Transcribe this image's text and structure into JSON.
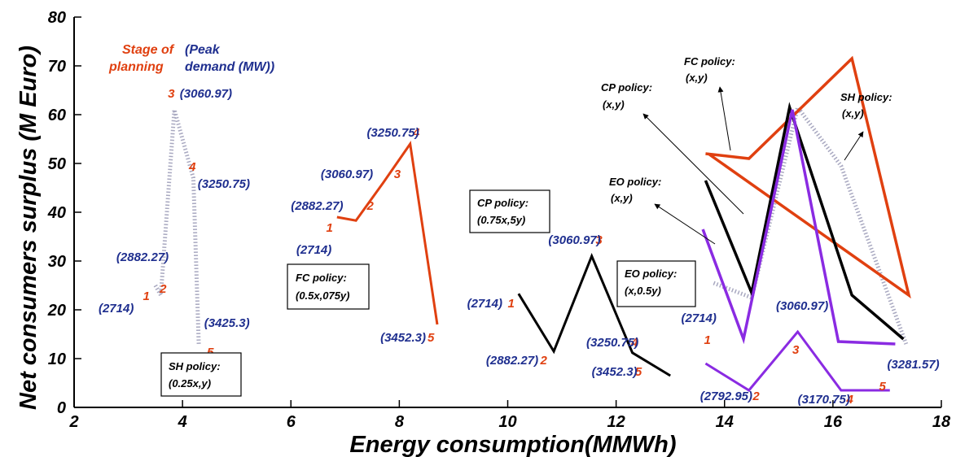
{
  "chart_data": {
    "type": "line",
    "xlabel": "Energy consumption(MMWh)",
    "ylabel": "Net consumers surplus (M Euro)",
    "xlim": [
      2,
      18
    ],
    "ylim": [
      0,
      80
    ],
    "xticks": [
      2,
      4,
      6,
      8,
      10,
      12,
      14,
      16,
      18
    ],
    "yticks": [
      0,
      10,
      20,
      30,
      40,
      50,
      60,
      70,
      80
    ],
    "grid": false,
    "legend_header": {
      "stage": "Stage of planning",
      "peak": "(Peak demand (MW))"
    },
    "series": [
      {
        "policy": "SH policy: (0.25x,y)",
        "color": "#a8a8c0",
        "style": "dotted",
        "points": [
          [
            3.5,
            25
          ],
          [
            3.6,
            23
          ],
          [
            3.85,
            61
          ],
          [
            4.2,
            47
          ],
          [
            4.3,
            13
          ]
        ]
      },
      {
        "policy": "FC policy: (0.5x,075y)",
        "color": "#e04010",
        "style": "solid",
        "points": [
          [
            6.85,
            39
          ],
          [
            7.2,
            38.3
          ],
          [
            7.7,
            46
          ],
          [
            8.2,
            54
          ],
          [
            8.7,
            17
          ]
        ]
      },
      {
        "policy": "CP policy: (0.75x,5y)",
        "color": "#000000",
        "style": "solid",
        "points": [
          [
            10.2,
            23.3
          ],
          [
            10.85,
            11.5
          ],
          [
            11.55,
            31
          ],
          [
            12.3,
            11.2
          ],
          [
            13.0,
            6.5
          ]
        ]
      },
      {
        "policy": "EO policy: (x,0.5y)",
        "color": "#8a2be2",
        "style": "solid",
        "points": [
          [
            13.65,
            9
          ],
          [
            14.45,
            3.5
          ],
          [
            15.35,
            15.5
          ],
          [
            16.15,
            3.5
          ],
          [
            17.05,
            3.5
          ]
        ]
      },
      {
        "policy": "SH policy: (x,y)",
        "color": "#a8a8c0",
        "style": "dotted",
        "points": [
          [
            13.8,
            25.5
          ],
          [
            14.5,
            22.5
          ],
          [
            15.35,
            61.5
          ],
          [
            16.15,
            49.5
          ],
          [
            17.35,
            13
          ]
        ]
      },
      {
        "policy": "FC policy: (x,y)",
        "color": "#e04010",
        "style": "solid",
        "points": [
          [
            13.65,
            52
          ],
          [
            14.45,
            51
          ],
          [
            16.35,
            71.5
          ],
          [
            17.4,
            23
          ],
          [
            13.7,
            52
          ]
        ]
      },
      {
        "policy": "CP policy: (x,y)",
        "color": "#000000",
        "style": "solid",
        "points": [
          [
            13.65,
            46.5
          ],
          [
            14.5,
            23.5
          ],
          [
            15.2,
            61.5
          ],
          [
            16.35,
            23
          ],
          [
            17.3,
            14
          ]
        ]
      },
      {
        "policy": "EO policy: (x,y)",
        "color": "#8a2be2",
        "style": "solid",
        "points": [
          [
            13.6,
            36.5
          ],
          [
            14.35,
            14
          ],
          [
            15.25,
            61
          ],
          [
            16.1,
            13.5
          ],
          [
            17.15,
            13
          ]
        ]
      }
    ],
    "stage_labels": [
      {
        "text": "3",
        "x": 3.73,
        "y": 63.5
      },
      {
        "text": "4",
        "x": 4.12,
        "y": 48.5
      },
      {
        "text": "2",
        "x": 3.58,
        "y": 23.5
      },
      {
        "text": "1",
        "x": 3.27,
        "y": 22
      },
      {
        "text": "5",
        "x": 4.45,
        "y": 10.5
      },
      {
        "text": "4",
        "x": 8.25,
        "y": 55.5
      },
      {
        "text": "3",
        "x": 7.9,
        "y": 47
      },
      {
        "text": "2",
        "x": 7.4,
        "y": 40.5
      },
      {
        "text": "1",
        "x": 6.65,
        "y": 36
      },
      {
        "text": "5",
        "x": 8.52,
        "y": 13.5
      },
      {
        "text": "1",
        "x": 10.0,
        "y": 20.5
      },
      {
        "text": "3",
        "x": 11.62,
        "y": 33.5
      },
      {
        "text": "2",
        "x": 10.6,
        "y": 8.8
      },
      {
        "text": "4",
        "x": 12.28,
        "y": 12.5
      },
      {
        "text": "5",
        "x": 12.35,
        "y": 6.5
      },
      {
        "text": "1",
        "x": 13.62,
        "y": 13
      },
      {
        "text": "3",
        "x": 15.25,
        "y": 11
      },
      {
        "text": "2",
        "x": 14.52,
        "y": 1.5
      },
      {
        "text": "4",
        "x": 16.25,
        "y": 0.8
      },
      {
        "text": "5",
        "x": 16.85,
        "y": 3.5
      }
    ],
    "peak_labels": [
      {
        "text": "(3060.97)",
        "x": 3.95,
        "y": 63.5
      },
      {
        "text": "(3250.75)",
        "x": 4.28,
        "y": 45
      },
      {
        "text": "(2882.27)",
        "x": 2.78,
        "y": 30
      },
      {
        "text": "(2714)",
        "x": 2.45,
        "y": 19.5
      },
      {
        "text": "(3425.3)",
        "x": 4.4,
        "y": 16.5
      },
      {
        "text": "(3250.75)",
        "x": 7.4,
        "y": 55.5
      },
      {
        "text": "(3060.97)",
        "x": 6.55,
        "y": 47
      },
      {
        "text": "(2882.27)",
        "x": 6.0,
        "y": 40.5
      },
      {
        "text": "(2714)",
        "x": 6.1,
        "y": 31.5
      },
      {
        "text": "(3452.3)",
        "x": 7.65,
        "y": 13.5
      },
      {
        "text": "(2714)",
        "x": 9.25,
        "y": 20.5
      },
      {
        "text": "(3060.97)",
        "x": 10.75,
        "y": 33.5
      },
      {
        "text": "(2882.27)",
        "x": 9.6,
        "y": 8.8
      },
      {
        "text": "(3250.75)",
        "x": 11.45,
        "y": 12.5
      },
      {
        "text": "(3452.3)",
        "x": 11.55,
        "y": 6.5
      },
      {
        "text": "(2714)",
        "x": 13.2,
        "y": 17.5
      },
      {
        "text": "(3060.97)",
        "x": 14.95,
        "y": 20
      },
      {
        "text": "(2792.95)",
        "x": 13.55,
        "y": 1.5
      },
      {
        "text": "(3170.75)",
        "x": 15.35,
        "y": 0.8
      },
      {
        "text": "(3281.57)",
        "x": 17.0,
        "y": 8
      }
    ],
    "annotations": [
      {
        "lines": [
          "SH policy:",
          "(0.25x,y)"
        ],
        "boxed": true
      },
      {
        "lines": [
          "FC policy:",
          "(0.5x,075y)"
        ],
        "boxed": true
      },
      {
        "lines": [
          "CP policy:",
          "(0.75x,5y)"
        ],
        "boxed": true
      },
      {
        "lines": [
          "EO policy:",
          "(x,0.5y)"
        ],
        "boxed": true
      },
      {
        "lines": [
          "FC policy:",
          "(x,y)"
        ],
        "boxed": false
      },
      {
        "lines": [
          "CP policy:",
          "(x,y)"
        ],
        "boxed": false
      },
      {
        "lines": [
          "EO policy:",
          "(x,y)"
        ],
        "boxed": false
      },
      {
        "lines": [
          "SH policy:",
          "(x,y)"
        ],
        "boxed": false
      }
    ]
  }
}
